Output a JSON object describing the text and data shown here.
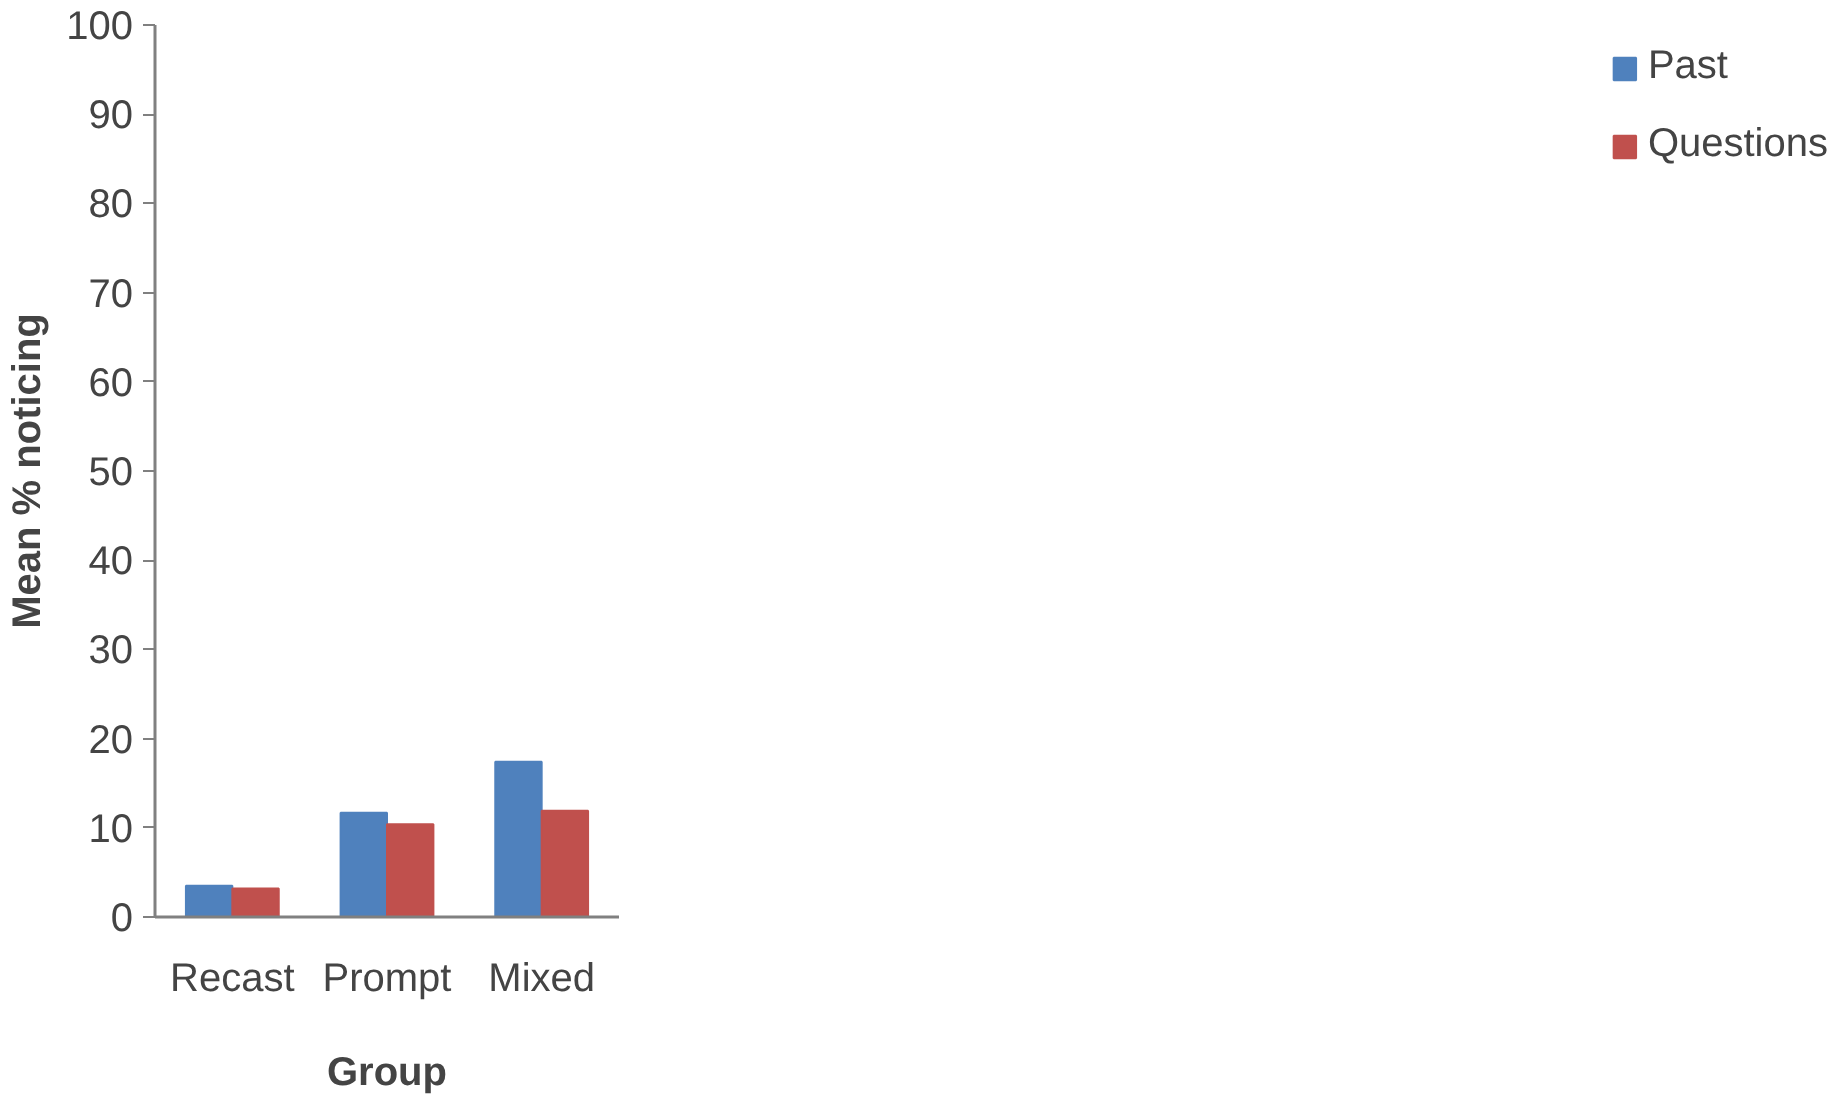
{
  "chart_data": {
    "type": "bar",
    "xlabel": "Group",
    "ylabel": "Mean % noticing",
    "categories": [
      "Recast",
      "Prompt",
      "Mixed"
    ],
    "series": [
      {
        "name": "Past",
        "color": "#4f81bd",
        "values": [
          3.5,
          11.7,
          17.4
        ]
      },
      {
        "name": "Questions",
        "color": "#c0504d",
        "values": [
          3.2,
          10.4,
          11.9
        ]
      }
    ],
    "ylim": [
      0,
      100
    ],
    "yticks": [
      0,
      10,
      20,
      30,
      40,
      50,
      60,
      70,
      80,
      90,
      100
    ],
    "grid": false,
    "legend": "right"
  }
}
